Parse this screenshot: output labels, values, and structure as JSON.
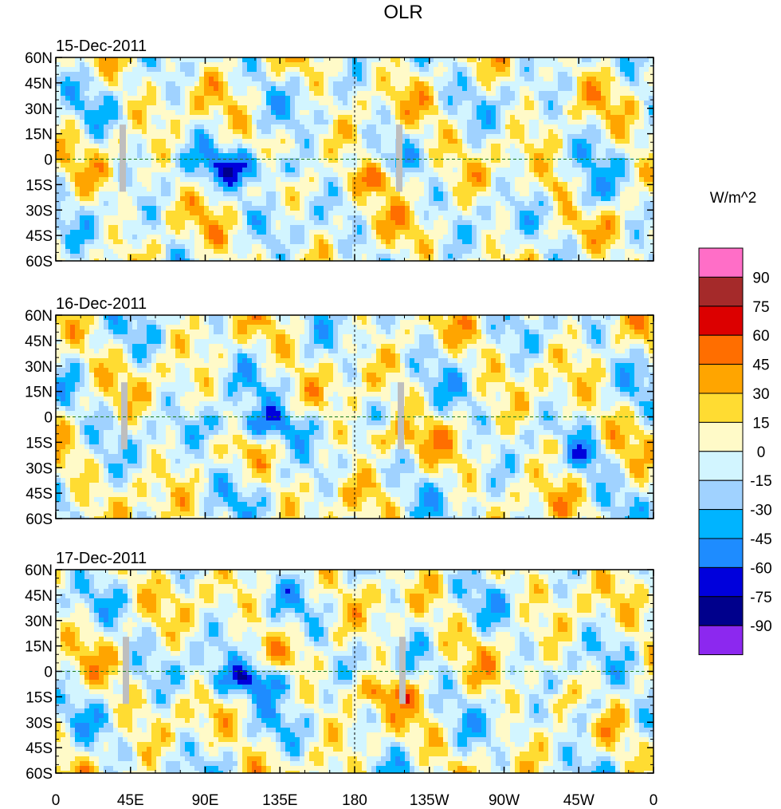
{
  "chart_data": {
    "type": "heatmap",
    "title": "OLR",
    "units": "W/m^2",
    "panels": [
      {
        "date": "15-Dec-2011"
      },
      {
        "date": "16-Dec-2011"
      },
      {
        "date": "17-Dec-2011"
      }
    ],
    "lat_ticks": [
      "60N",
      "45N",
      "30N",
      "15N",
      "0",
      "15S",
      "30S",
      "45S",
      "60S"
    ],
    "lat_values": [
      60,
      45,
      30,
      15,
      0,
      -15,
      -30,
      -45,
      -60
    ],
    "lon_ticks": [
      "0",
      "45E",
      "90E",
      "135E",
      "180",
      "135W",
      "90W",
      "45W",
      "0"
    ],
    "lon_values": [
      0,
      45,
      90,
      135,
      180,
      225,
      270,
      315,
      360
    ],
    "xlim": [
      0,
      360
    ],
    "ylim": [
      -60,
      60
    ],
    "colorbar": {
      "labels": [
        "90",
        "75",
        "60",
        "45",
        "30",
        "15",
        "0",
        "-15",
        "-30",
        "-45",
        "-60",
        "-75",
        "-90"
      ],
      "levels": [
        90,
        75,
        60,
        45,
        30,
        15,
        0,
        -15,
        -30,
        -45,
        -60,
        -75,
        -90
      ],
      "colors": [
        "#ff6ec7",
        "#a52a2a",
        "#dc0000",
        "#ff6e00",
        "#ffa500",
        "#ffdc32",
        "#fffac8",
        "#d2f5ff",
        "#a0d2ff",
        "#00b4ff",
        "#1e8cff",
        "#0000dc",
        "#00008c",
        "#8c28ef"
      ]
    }
  }
}
